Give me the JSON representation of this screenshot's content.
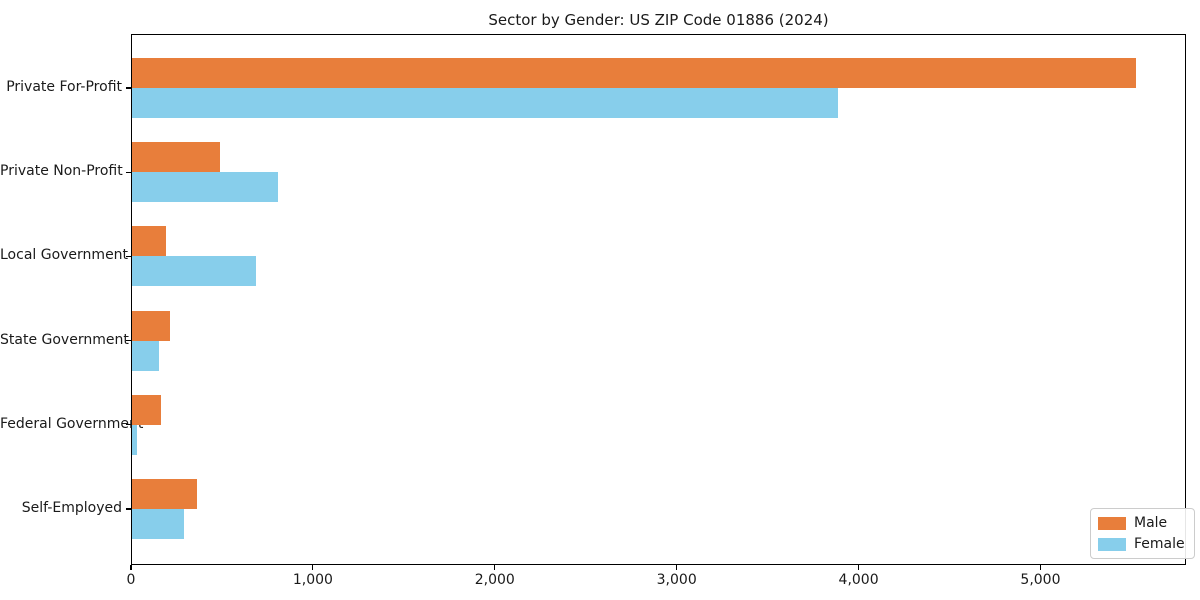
{
  "chart_data": {
    "type": "bar",
    "orientation": "horizontal",
    "title": "Sector by Gender: US ZIP Code 01886 (2024)",
    "categories": [
      "Private For-Profit",
      "Private Non-Profit",
      "Local Government",
      "State Government",
      "Federal Government",
      "Self-Employed"
    ],
    "series": [
      {
        "name": "Male",
        "color": "#e87e3b",
        "values": [
          5520,
          485,
          185,
          210,
          160,
          355
        ]
      },
      {
        "name": "Female",
        "color": "#87ceeb",
        "values": [
          3880,
          805,
          680,
          150,
          30,
          285
        ]
      }
    ],
    "xlabel": "",
    "ylabel": "",
    "xlim": [
      0,
      5800
    ],
    "xticks": [
      0,
      1000,
      2000,
      3000,
      4000,
      5000
    ],
    "xtick_labels": [
      "0",
      "1,000",
      "2,000",
      "3,000",
      "4,000",
      "5,000"
    ],
    "grid": false,
    "legend": {
      "position": "lower-right",
      "entries": [
        "Male",
        "Female"
      ]
    },
    "axis_color": "#000000",
    "text_color": "#1a1a1a"
  }
}
